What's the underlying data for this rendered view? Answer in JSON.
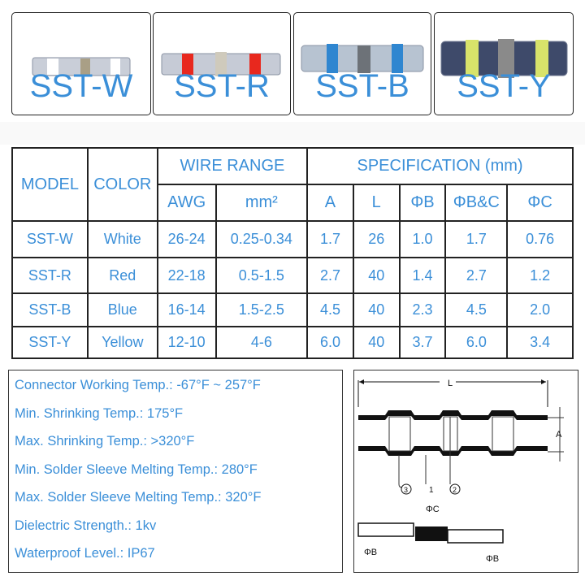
{
  "products": [
    {
      "model": "SST-W",
      "band_color": "#ffffff"
    },
    {
      "model": "SST-R",
      "band_color": "#e8281e"
    },
    {
      "model": "SST-B",
      "band_color": "#2f86d0"
    },
    {
      "model": "SST-Y",
      "band_color": "#d8e36a"
    }
  ],
  "table": {
    "headers": {
      "model": "MODEL",
      "color": "COLOR",
      "wire_range": "WIRE RANGE",
      "specification": "SPECIFICATION (mm)",
      "sub": [
        "AWG",
        "mm²",
        "A",
        "L",
        "ΦB",
        "ΦB&C",
        "ΦC"
      ]
    },
    "rows": [
      [
        "SST-W",
        "White",
        "26-24",
        "0.25-0.34",
        "1.7",
        "26",
        "1.0",
        "1.7",
        "0.76"
      ],
      [
        "SST-R",
        "Red",
        "22-18",
        "0.5-1.5",
        "2.7",
        "40",
        "1.4",
        "2.7",
        "1.2"
      ],
      [
        "SST-B",
        "Blue",
        "16-14",
        "1.5-2.5",
        "4.5",
        "40",
        "2.3",
        "4.5",
        "2.0"
      ],
      [
        "SST-Y",
        "Yellow",
        "12-10",
        "4-6",
        "6.0",
        "40",
        "3.7",
        "6.0",
        "3.4"
      ]
    ]
  },
  "specs": [
    "Connector Working Temp.: -67°F ~ 257°F",
    "Min. Shrinking Temp.: 175°F",
    "Max. Shrinking Temp.: >320°F",
    "Min. Solder Sleeve Melting Temp.:  280°F",
    "Max. Solder Sleeve Melting Temp.:  320°F",
    "Dielectric Strength.: 1kv",
    "Waterproof Level.: IP67"
  ],
  "diagram": {
    "L": "L",
    "A": "A",
    "c3": "3",
    "c1": "1",
    "c2": "2",
    "phiC": "ΦC",
    "phiB1": "ΦB",
    "phiB2": "ΦB"
  },
  "colors": {
    "text": "#3b8fd8",
    "border": "#222222"
  }
}
